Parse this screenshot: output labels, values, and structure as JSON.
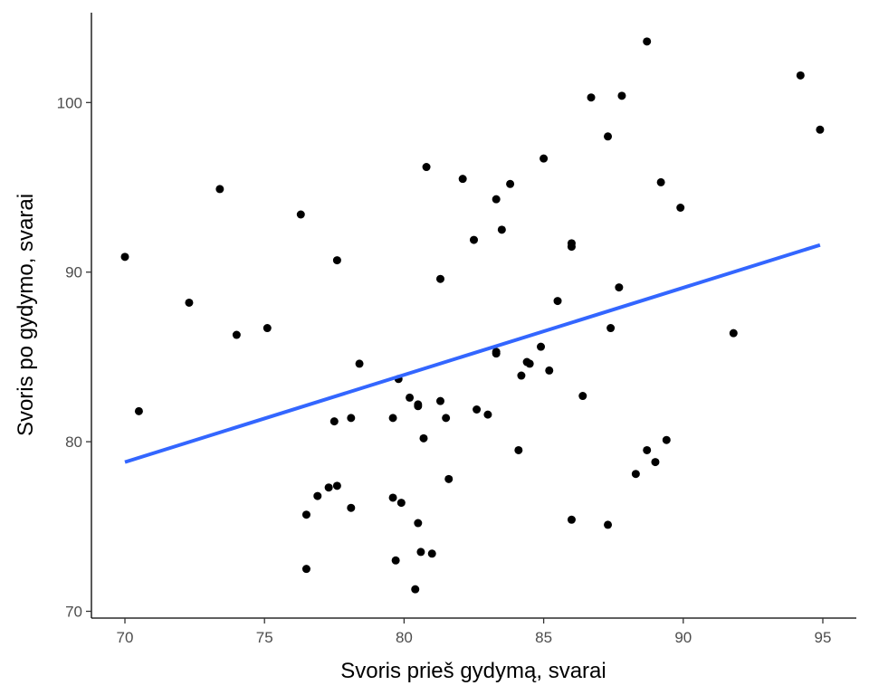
{
  "chart_data": {
    "type": "scatter",
    "title": "",
    "xlabel": "Svoris prieš gydymą, svarai",
    "ylabel": "Svoris po gydymo, svarai",
    "xlim": [
      68.8,
      96.2
    ],
    "ylim": [
      69.6,
      105.3
    ],
    "x_ticks": [
      70,
      75,
      80,
      85,
      90,
      95
    ],
    "y_ticks": [
      70,
      80,
      90,
      100
    ],
    "x_tick_labels": [
      "70",
      "75",
      "80",
      "85",
      "90",
      "95"
    ],
    "y_tick_labels": [
      "70",
      "80",
      "90",
      "100"
    ],
    "grid": false,
    "legend": "none",
    "colors": {
      "points": "#000000",
      "fit_line": "#3366ff"
    },
    "fit_line": {
      "method": "linear",
      "x": [
        70.0,
        94.9
      ],
      "y": [
        78.8,
        91.6
      ]
    },
    "points": [
      {
        "x": 70.0,
        "y": 90.9
      },
      {
        "x": 70.5,
        "y": 81.8
      },
      {
        "x": 72.3,
        "y": 88.2
      },
      {
        "x": 73.4,
        "y": 94.9
      },
      {
        "x": 74.0,
        "y": 86.3
      },
      {
        "x": 75.1,
        "y": 86.7
      },
      {
        "x": 76.3,
        "y": 93.4
      },
      {
        "x": 76.5,
        "y": 75.7
      },
      {
        "x": 76.5,
        "y": 72.5
      },
      {
        "x": 76.9,
        "y": 76.8
      },
      {
        "x": 77.3,
        "y": 77.3
      },
      {
        "x": 77.5,
        "y": 81.2
      },
      {
        "x": 77.6,
        "y": 77.4
      },
      {
        "x": 77.6,
        "y": 90.7
      },
      {
        "x": 78.1,
        "y": 81.4
      },
      {
        "x": 78.1,
        "y": 76.1
      },
      {
        "x": 78.4,
        "y": 84.6
      },
      {
        "x": 79.6,
        "y": 81.4
      },
      {
        "x": 79.6,
        "y": 76.7
      },
      {
        "x": 79.7,
        "y": 73.0
      },
      {
        "x": 79.8,
        "y": 83.7
      },
      {
        "x": 79.9,
        "y": 76.4
      },
      {
        "x": 80.2,
        "y": 82.6
      },
      {
        "x": 80.4,
        "y": 71.3
      },
      {
        "x": 80.5,
        "y": 82.1
      },
      {
        "x": 80.5,
        "y": 82.2
      },
      {
        "x": 80.5,
        "y": 75.2
      },
      {
        "x": 80.6,
        "y": 73.5
      },
      {
        "x": 80.7,
        "y": 80.2
      },
      {
        "x": 80.8,
        "y": 96.2
      },
      {
        "x": 81.0,
        "y": 73.4
      },
      {
        "x": 81.3,
        "y": 89.6
      },
      {
        "x": 81.3,
        "y": 82.4
      },
      {
        "x": 81.5,
        "y": 81.4
      },
      {
        "x": 81.6,
        "y": 77.8
      },
      {
        "x": 82.1,
        "y": 95.5
      },
      {
        "x": 82.5,
        "y": 91.9
      },
      {
        "x": 82.6,
        "y": 81.9
      },
      {
        "x": 83.0,
        "y": 81.6
      },
      {
        "x": 83.3,
        "y": 94.3
      },
      {
        "x": 83.3,
        "y": 85.3
      },
      {
        "x": 83.3,
        "y": 85.2
      },
      {
        "x": 83.5,
        "y": 92.5
      },
      {
        "x": 83.8,
        "y": 95.2
      },
      {
        "x": 84.1,
        "y": 79.5
      },
      {
        "x": 84.2,
        "y": 83.9
      },
      {
        "x": 84.4,
        "y": 84.7
      },
      {
        "x": 84.5,
        "y": 84.6
      },
      {
        "x": 84.9,
        "y": 85.6
      },
      {
        "x": 85.0,
        "y": 96.7
      },
      {
        "x": 85.2,
        "y": 84.2
      },
      {
        "x": 85.5,
        "y": 88.3
      },
      {
        "x": 86.0,
        "y": 91.7
      },
      {
        "x": 86.0,
        "y": 91.5
      },
      {
        "x": 86.0,
        "y": 75.4
      },
      {
        "x": 86.4,
        "y": 82.7
      },
      {
        "x": 86.7,
        "y": 100.3
      },
      {
        "x": 87.3,
        "y": 98.0
      },
      {
        "x": 87.3,
        "y": 75.1
      },
      {
        "x": 87.4,
        "y": 86.7
      },
      {
        "x": 87.7,
        "y": 89.1
      },
      {
        "x": 87.8,
        "y": 100.4
      },
      {
        "x": 88.3,
        "y": 78.1
      },
      {
        "x": 88.7,
        "y": 103.6
      },
      {
        "x": 88.7,
        "y": 79.5
      },
      {
        "x": 89.0,
        "y": 78.8
      },
      {
        "x": 89.2,
        "y": 95.3
      },
      {
        "x": 89.4,
        "y": 80.1
      },
      {
        "x": 89.9,
        "y": 93.8
      },
      {
        "x": 91.8,
        "y": 86.4
      },
      {
        "x": 94.2,
        "y": 101.6
      },
      {
        "x": 94.9,
        "y": 98.4
      }
    ]
  }
}
